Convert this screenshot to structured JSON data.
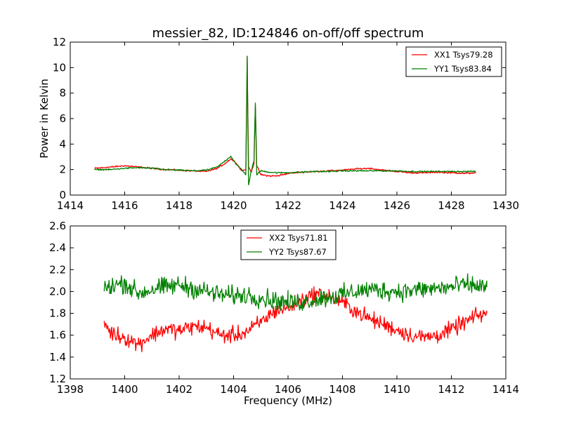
{
  "title": "messier_82, ID:124846 on-off/off spectrum",
  "chart_data": [
    {
      "type": "line",
      "ylabel": "Power in Kelvin",
      "xlabel": "",
      "xlim": [
        1414,
        1430
      ],
      "ylim": [
        0,
        12
      ],
      "xticks": [
        1414,
        1416,
        1418,
        1420,
        1422,
        1424,
        1426,
        1428,
        1430
      ],
      "yticks": [
        0,
        2,
        4,
        6,
        8,
        10,
        12
      ],
      "legend_position": "top-right",
      "series": [
        {
          "name": "XX1 Tsys79.28",
          "color": "#ff0000",
          "x": [
            1414.9,
            1415.5,
            1416.0,
            1416.5,
            1417.0,
            1417.5,
            1418.0,
            1418.5,
            1419.0,
            1419.4,
            1419.7,
            1419.9,
            1420.1,
            1420.3,
            1420.45,
            1420.5,
            1420.55,
            1420.65,
            1420.75,
            1420.8,
            1420.85,
            1421.0,
            1421.3,
            1421.6,
            1422.0,
            1422.5,
            1423.0,
            1423.5,
            1424.0,
            1424.5,
            1425.0,
            1425.5,
            1426.0,
            1426.5,
            1427.0,
            1427.5,
            1428.0,
            1428.5,
            1428.9
          ],
          "y": [
            2.1,
            2.2,
            2.3,
            2.2,
            2.1,
            2.0,
            1.95,
            1.9,
            1.85,
            2.1,
            2.5,
            2.85,
            2.5,
            1.9,
            2.0,
            10.8,
            2.2,
            1.8,
            2.5,
            7.0,
            2.3,
            1.6,
            1.5,
            1.5,
            1.7,
            1.8,
            1.85,
            1.9,
            1.95,
            2.05,
            2.1,
            1.95,
            1.85,
            1.75,
            1.75,
            1.8,
            1.75,
            1.7,
            1.75
          ]
        },
        {
          "name": "YY1 Tsys83.84",
          "color": "#008000",
          "x": [
            1414.9,
            1415.5,
            1416.0,
            1416.5,
            1417.0,
            1417.5,
            1418.0,
            1418.5,
            1419.0,
            1419.4,
            1419.7,
            1419.9,
            1420.1,
            1420.3,
            1420.45,
            1420.5,
            1420.55,
            1420.65,
            1420.75,
            1420.8,
            1420.85,
            1421.0,
            1421.3,
            1421.6,
            1422.0,
            1422.5,
            1423.0,
            1423.5,
            1424.0,
            1424.5,
            1425.0,
            1425.5,
            1426.0,
            1426.5,
            1427.0,
            1427.5,
            1428.0,
            1428.5,
            1428.9
          ],
          "y": [
            2.0,
            2.0,
            2.1,
            2.15,
            2.1,
            2.0,
            1.95,
            1.9,
            1.95,
            2.2,
            2.7,
            3.05,
            2.4,
            2.0,
            1.6,
            10.9,
            0.8,
            1.9,
            2.7,
            7.2,
            1.6,
            1.9,
            1.8,
            1.75,
            1.75,
            1.8,
            1.85,
            1.85,
            1.9,
            1.9,
            1.9,
            1.9,
            1.9,
            1.85,
            1.85,
            1.85,
            1.85,
            1.85,
            1.85
          ]
        }
      ]
    },
    {
      "type": "line",
      "xlabel": "Frequency (MHz)",
      "ylabel": "",
      "xlim": [
        1398,
        1414
      ],
      "ylim": [
        1.2,
        2.6
      ],
      "xticks": [
        1398,
        1400,
        1402,
        1404,
        1406,
        1408,
        1410,
        1412,
        1414
      ],
      "yticks": [
        1.2,
        1.4,
        1.6,
        1.8,
        2.0,
        2.2,
        2.4,
        2.6
      ],
      "legend_position": "top-center",
      "series": [
        {
          "name": "XX2 Tsys71.81",
          "color": "#ff0000",
          "x": [
            1399.25,
            1399.5,
            1400.0,
            1400.5,
            1401.0,
            1401.5,
            1402.0,
            1402.5,
            1403.0,
            1403.5,
            1404.0,
            1404.5,
            1405.0,
            1405.5,
            1406.0,
            1406.5,
            1407.0,
            1407.5,
            1408.0,
            1408.5,
            1409.0,
            1409.5,
            1410.0,
            1410.5,
            1411.0,
            1411.5,
            1412.0,
            1412.5,
            1413.0,
            1413.3
          ],
          "y": [
            1.72,
            1.62,
            1.58,
            1.52,
            1.6,
            1.66,
            1.64,
            1.68,
            1.67,
            1.6,
            1.6,
            1.63,
            1.72,
            1.82,
            1.85,
            1.92,
            1.98,
            1.96,
            1.9,
            1.82,
            1.75,
            1.7,
            1.65,
            1.6,
            1.58,
            1.6,
            1.65,
            1.72,
            1.78,
            1.8
          ]
        },
        {
          "name": "YY2 Tsys87.67",
          "color": "#008000",
          "x": [
            1399.25,
            1399.5,
            1400.0,
            1400.5,
            1401.0,
            1401.5,
            1402.0,
            1402.5,
            1403.0,
            1403.5,
            1404.0,
            1404.5,
            1405.0,
            1405.5,
            1406.0,
            1406.5,
            1407.0,
            1407.5,
            1408.0,
            1408.5,
            1409.0,
            1409.5,
            1410.0,
            1410.5,
            1411.0,
            1411.5,
            1412.0,
            1412.5,
            1413.0,
            1413.3
          ],
          "y": [
            2.02,
            2.05,
            2.08,
            1.98,
            2.02,
            2.04,
            2.06,
            2.03,
            2.0,
            1.97,
            1.96,
            1.97,
            1.94,
            1.92,
            1.9,
            1.9,
            1.93,
            1.95,
            1.97,
            2.0,
            2.02,
            2.01,
            2.0,
            2.01,
            2.02,
            2.03,
            2.04,
            2.06,
            2.05,
            2.04
          ]
        }
      ]
    }
  ]
}
